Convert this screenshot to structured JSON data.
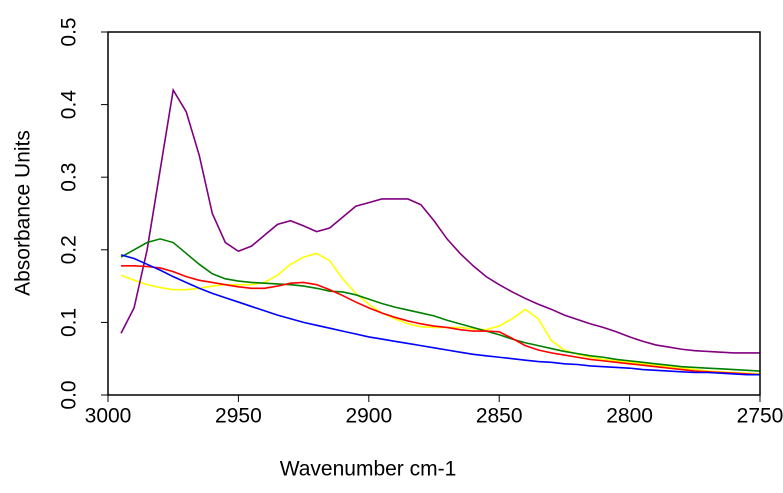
{
  "chart_data": {
    "type": "line",
    "xlabel": "Wavenumber cm-1",
    "ylabel": "Absorbance Units",
    "x": [
      2995,
      2990,
      2985,
      2980,
      2975,
      2970,
      2965,
      2960,
      2955,
      2950,
      2945,
      2940,
      2935,
      2930,
      2925,
      2920,
      2915,
      2910,
      2905,
      2900,
      2895,
      2890,
      2885,
      2880,
      2875,
      2870,
      2865,
      2860,
      2855,
      2850,
      2845,
      2840,
      2835,
      2830,
      2825,
      2820,
      2815,
      2810,
      2805,
      2800,
      2795,
      2790,
      2785,
      2780,
      2775,
      2770,
      2765,
      2760,
      2755,
      2750
    ],
    "series": [
      {
        "color": "#ffff00",
        "values": [
          0.165,
          0.158,
          0.152,
          0.148,
          0.145,
          0.145,
          0.147,
          0.15,
          0.152,
          0.152,
          0.152,
          0.155,
          0.165,
          0.18,
          0.19,
          0.195,
          0.185,
          0.16,
          0.14,
          0.125,
          0.113,
          0.105,
          0.098,
          0.094,
          0.093,
          0.093,
          0.093,
          0.091,
          0.09,
          0.095,
          0.105,
          0.118,
          0.105,
          0.075,
          0.062,
          0.056,
          0.052,
          0.049,
          0.047,
          0.045,
          0.043,
          0.041,
          0.039,
          0.037,
          0.035,
          0.033,
          0.032,
          0.031,
          0.03,
          0.029
        ]
      },
      {
        "color": "#800080",
        "values": [
          0.085,
          0.12,
          0.2,
          0.31,
          0.42,
          0.39,
          0.33,
          0.25,
          0.21,
          0.198,
          0.205,
          0.22,
          0.235,
          0.24,
          0.233,
          0.225,
          0.23,
          0.245,
          0.26,
          0.265,
          0.27,
          0.27,
          0.27,
          0.262,
          0.24,
          0.215,
          0.195,
          0.178,
          0.163,
          0.152,
          0.142,
          0.133,
          0.125,
          0.118,
          0.11,
          0.104,
          0.098,
          0.093,
          0.087,
          0.08,
          0.074,
          0.069,
          0.066,
          0.063,
          0.061,
          0.06,
          0.059,
          0.058,
          0.058,
          0.058
        ]
      },
      {
        "color": "#008000",
        "values": [
          0.19,
          0.2,
          0.21,
          0.215,
          0.21,
          0.195,
          0.18,
          0.167,
          0.16,
          0.157,
          0.155,
          0.154,
          0.153,
          0.152,
          0.15,
          0.147,
          0.143,
          0.142,
          0.138,
          0.132,
          0.126,
          0.121,
          0.117,
          0.113,
          0.109,
          0.103,
          0.098,
          0.093,
          0.088,
          0.083,
          0.077,
          0.072,
          0.068,
          0.064,
          0.06,
          0.057,
          0.054,
          0.052,
          0.049,
          0.047,
          0.045,
          0.043,
          0.041,
          0.039,
          0.038,
          0.037,
          0.036,
          0.035,
          0.034,
          0.033
        ]
      },
      {
        "color": "#ff0000",
        "values": [
          0.178,
          0.178,
          0.177,
          0.175,
          0.17,
          0.163,
          0.158,
          0.155,
          0.152,
          0.149,
          0.147,
          0.147,
          0.15,
          0.154,
          0.155,
          0.152,
          0.145,
          0.137,
          0.128,
          0.12,
          0.113,
          0.107,
          0.102,
          0.098,
          0.095,
          0.093,
          0.09,
          0.088,
          0.088,
          0.087,
          0.078,
          0.068,
          0.062,
          0.058,
          0.055,
          0.052,
          0.049,
          0.047,
          0.045,
          0.043,
          0.041,
          0.039,
          0.037,
          0.035,
          0.033,
          0.032,
          0.031,
          0.03,
          0.029,
          0.028
        ]
      },
      {
        "color": "#0000ff",
        "values": [
          0.193,
          0.188,
          0.18,
          0.172,
          0.163,
          0.155,
          0.147,
          0.14,
          0.134,
          0.128,
          0.122,
          0.116,
          0.11,
          0.105,
          0.1,
          0.096,
          0.092,
          0.088,
          0.084,
          0.08,
          0.077,
          0.074,
          0.071,
          0.068,
          0.065,
          0.062,
          0.059,
          0.056,
          0.054,
          0.052,
          0.05,
          0.048,
          0.046,
          0.045,
          0.043,
          0.042,
          0.04,
          0.039,
          0.038,
          0.037,
          0.035,
          0.034,
          0.033,
          0.032,
          0.031,
          0.031,
          0.03,
          0.029,
          0.028,
          0.028
        ]
      }
    ],
    "xlim": [
      3000,
      2750
    ],
    "xticks": [
      3000,
      2950,
      2900,
      2850,
      2800,
      2750
    ],
    "ylim": [
      0,
      0.5
    ],
    "yticks": [
      {
        "value": 0,
        "label": "0.0"
      },
      0.1,
      0.2,
      0.3,
      0.4,
      0.5
    ]
  }
}
